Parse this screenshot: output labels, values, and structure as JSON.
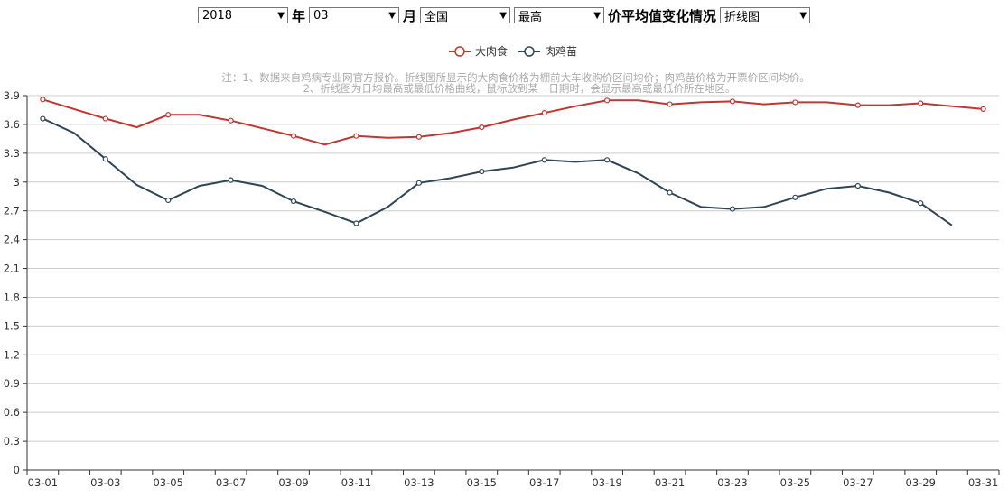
{
  "controls": {
    "year": "2018",
    "year_suffix": "年",
    "month": "03",
    "month_suffix": "月",
    "region": "全国",
    "metric": "最高",
    "title_text": "价平均值变化情况",
    "chart_type": "折线图"
  },
  "notes": [
    "注：1、数据来自鸡病专业网官方报价。折线图所显示的大肉食价格为棚前大车收购价区间均价；肉鸡苗价格为开票价区间均价。",
    "2、折线图为日均最高或最低价格曲线，鼠标放到某一日期时，会显示最高或最低价所在地区。"
  ],
  "colors": {
    "series1": "#c23531",
    "series2": "#2f4554",
    "grid": "#cccccc"
  },
  "chart_data": {
    "type": "line",
    "x": [
      "03-01",
      "03-02",
      "03-03",
      "03-04",
      "03-05",
      "03-06",
      "03-07",
      "03-08",
      "03-09",
      "03-10",
      "03-11",
      "03-12",
      "03-13",
      "03-14",
      "03-15",
      "03-16",
      "03-17",
      "03-18",
      "03-19",
      "03-20",
      "03-21",
      "03-22",
      "03-23",
      "03-24",
      "03-25",
      "03-26",
      "03-27",
      "03-28",
      "03-29",
      "03-30",
      "03-31"
    ],
    "x_tick_labels": [
      "03-01",
      "03-03",
      "03-05",
      "03-07",
      "03-09",
      "03-11",
      "03-13",
      "03-15",
      "03-17",
      "03-19",
      "03-21",
      "03-23",
      "03-25",
      "03-27",
      "03-29",
      "03-31"
    ],
    "series": [
      {
        "name": "大肉食",
        "values": [
          3.86,
          3.76,
          3.66,
          3.57,
          3.7,
          3.7,
          3.64,
          3.56,
          3.48,
          3.39,
          3.48,
          3.46,
          3.47,
          3.51,
          3.57,
          3.65,
          3.72,
          3.79,
          3.85,
          3.85,
          3.81,
          3.83,
          3.84,
          3.81,
          3.83,
          3.83,
          3.8,
          3.8,
          3.82,
          3.79,
          3.76
        ]
      },
      {
        "name": "肉鸡苗",
        "values": [
          3.66,
          3.51,
          3.24,
          2.97,
          2.81,
          2.96,
          3.02,
          2.96,
          2.8,
          2.69,
          2.57,
          2.74,
          2.99,
          3.04,
          3.11,
          3.15,
          3.23,
          3.21,
          3.23,
          3.09,
          2.89,
          2.74,
          2.72,
          2.74,
          2.84,
          2.93,
          2.96,
          2.89,
          2.78,
          2.55,
          null
        ]
      }
    ],
    "ylim": [
      0,
      3.9
    ],
    "y_ticks": [
      "0",
      "0.3",
      "0.6",
      "0.9",
      "1.2",
      "1.5",
      "1.8",
      "2.1",
      "2.4",
      "2.7",
      "3",
      "3.3",
      "3.6",
      "3.9"
    ],
    "grid": true,
    "legend": "top-center"
  }
}
